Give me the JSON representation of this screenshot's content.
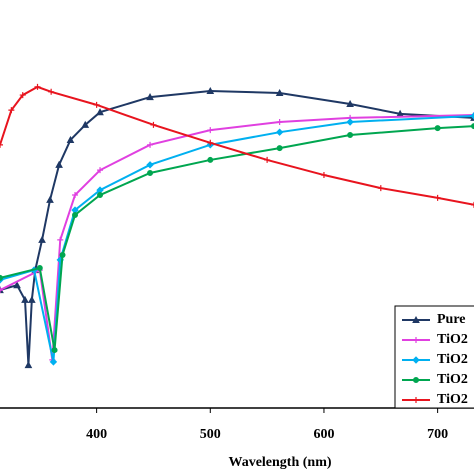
{
  "chart_data": {
    "type": "line",
    "x_label": "Wavelength (nm)",
    "xlim": [
      315,
      732
    ],
    "xticks": [
      400,
      500,
      600,
      700
    ],
    "ylim": [
      0,
      100
    ],
    "series": [
      {
        "name": "Pure",
        "color": "#1f3864",
        "marker": "triangle",
        "x": [
          315,
          330,
          337,
          340,
          343,
          346,
          352,
          359,
          367,
          377,
          390,
          403,
          447,
          500,
          561,
          623,
          667,
          732
        ],
        "values": [
          28.9,
          30.1,
          26.5,
          10.5,
          26.5,
          33.8,
          41.2,
          51,
          59.6,
          65.7,
          69.4,
          72.5,
          76.2,
          77.7,
          77.2,
          74.5,
          72.1,
          71.1
        ]
      },
      {
        "name": "TiO2",
        "color": "#e040e0",
        "marker": "plus",
        "x": [
          315,
          350,
          361,
          368,
          381,
          403,
          447,
          500,
          561,
          623,
          732
        ],
        "values": [
          28.9,
          33.8,
          11.8,
          41.2,
          52.2,
          58.3,
          64.5,
          68.1,
          70.1,
          71.1,
          71.8
        ]
      },
      {
        "name": "TiO2",
        "color": "#00b0f0",
        "marker": "diamond",
        "x": [
          315,
          345,
          362,
          368,
          381,
          403,
          447,
          500,
          561,
          623,
          732
        ],
        "values": [
          31.4,
          33.8,
          11.3,
          36.3,
          48.5,
          53.4,
          59.6,
          64.5,
          67.6,
          70.1,
          71.6
        ]
      },
      {
        "name": "TiO2",
        "color": "#00a650",
        "marker": "circle",
        "x": [
          315,
          350,
          363,
          370,
          381,
          403,
          447,
          500,
          561,
          623,
          700,
          732
        ],
        "values": [
          31.9,
          34.3,
          14.2,
          37.5,
          47.3,
          52.2,
          57.6,
          60.8,
          63.7,
          66.9,
          68.6,
          69.1
        ]
      },
      {
        "name": "TiO2",
        "color": "#e8141e",
        "marker": "plus",
        "x": [
          315,
          325,
          335,
          348,
          360,
          400,
          450,
          500,
          550,
          600,
          650,
          700,
          732
        ],
        "values": [
          64.5,
          73,
          76.7,
          78.7,
          77.5,
          74.3,
          69.4,
          65,
          60.8,
          57.1,
          53.9,
          51.5,
          49.8
        ]
      }
    ]
  }
}
